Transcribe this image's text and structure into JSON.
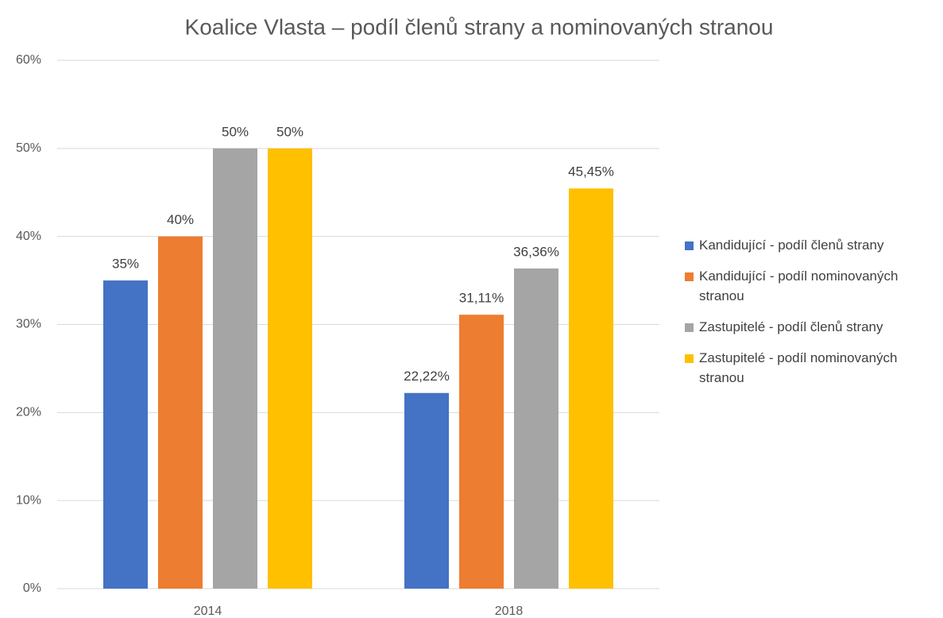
{
  "chart_data": {
    "type": "bar",
    "title": "Koalice Vlasta – podíl členů strany a nominovaných stranou",
    "categories": [
      "2014",
      "2018"
    ],
    "series": [
      {
        "name": "Kandidující - podíl členů strany",
        "color": "#4472c4",
        "values": [
          35,
          22.22
        ],
        "value_labels": [
          "35%",
          "22,22%"
        ]
      },
      {
        "name": "Kandidující - podíl nominovaných stranou",
        "color": "#ed7d31",
        "values": [
          40,
          31.11
        ],
        "value_labels": [
          "40%",
          "31,11%"
        ]
      },
      {
        "name": "Zastupitelé - podíl členů strany",
        "color": "#a5a5a5",
        "values": [
          50,
          36.36
        ],
        "value_labels": [
          "50%",
          "36,36%"
        ]
      },
      {
        "name": "Zastupitelé - podíl nominovaných stranou",
        "color": "#ffc000",
        "values": [
          50,
          45.45
        ],
        "value_labels": [
          "50%",
          "45,45%"
        ]
      }
    ],
    "ylim": [
      0,
      60
    ],
    "yticks": [
      {
        "value": 0,
        "label": "0%"
      },
      {
        "value": 10,
        "label": "10%"
      },
      {
        "value": 20,
        "label": "20%"
      },
      {
        "value": 30,
        "label": "30%"
      },
      {
        "value": 40,
        "label": "40%"
      },
      {
        "value": 50,
        "label": "50%"
      },
      {
        "value": 60,
        "label": "60%"
      }
    ],
    "grid": true,
    "legend": "right"
  }
}
